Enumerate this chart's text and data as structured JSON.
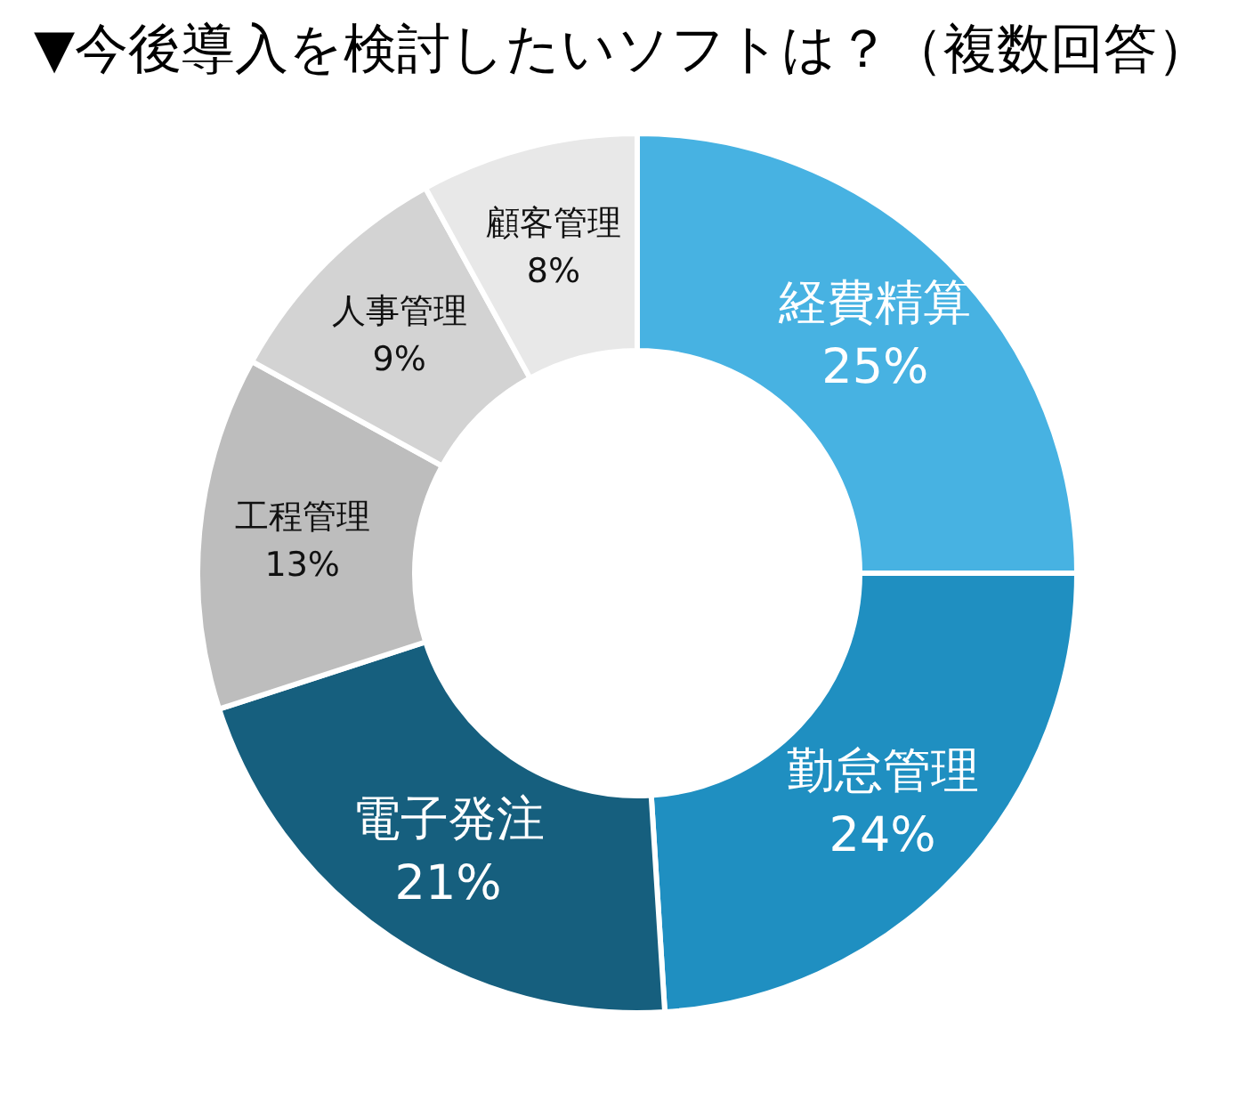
{
  "chart_data": {
    "type": "donut",
    "title": "▼今後導入を検討したいソフトは？（複数回答）",
    "categories": [
      "経費精算",
      "勤怠管理",
      "電子発注",
      "工程管理",
      "人事管理",
      "顧客管理"
    ],
    "values": [
      25,
      24,
      21,
      13,
      9,
      8
    ],
    "value_labels": [
      "25%",
      "24%",
      "21%",
      "13%",
      "9%",
      "8%"
    ],
    "colors": [
      "#47b2e2",
      "#1f8fc1",
      "#165f7e",
      "#bdbdbd",
      "#d3d3d3",
      "#e8e8e8"
    ],
    "legend": false
  }
}
